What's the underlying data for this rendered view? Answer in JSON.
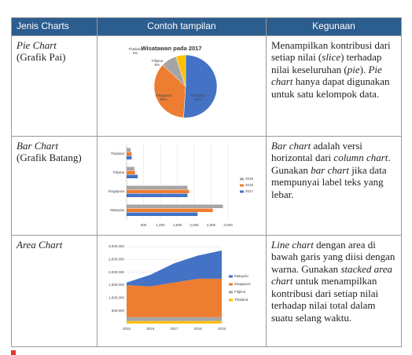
{
  "header": [
    "Jenis Charts",
    "Contoh tampilan",
    "Kegunaan"
  ],
  "rows": [
    {
      "name": "Pie Chart",
      "name_sub": "(Grafik Pai)",
      "chart": {
        "type": "pie",
        "title": "Wisatawan pada 2017",
        "categories": [
          "Malaysia",
          "Singapura",
          "Filipina",
          "Thailand"
        ],
        "values": [
          51,
          36,
          8,
          5
        ],
        "value_labels": [
          "51%",
          "36%",
          "8%",
          "5%"
        ],
        "colors": [
          "#4472c4",
          "#ed7d31",
          "#a5a5a5",
          "#ffc000"
        ]
      },
      "usage": [
        {
          "t": "Menampilkan kontribusi dari setiap nilai (",
          "i": false
        },
        {
          "t": "slice",
          "i": true
        },
        {
          "t": ") terhadap nilai keseluruhan (",
          "i": false
        },
        {
          "t": "pie",
          "i": true
        },
        {
          "t": "). ",
          "i": false
        },
        {
          "t": "Pie chart",
          "i": true
        },
        {
          "t": " hanya dapat digunakan untuk satu kelompok data.",
          "i": false
        }
      ]
    },
    {
      "name": "Bar Chart",
      "name_sub": "(Grafik Batang)",
      "chart": {
        "type": "bar",
        "orientation": "horizontal",
        "categories": [
          "Malaysia",
          "Singapura",
          "Filipina",
          "Thailand"
        ],
        "series": [
          {
            "name": "2017",
            "color": "#4472c4",
            "values": [
              2100,
              1800,
              330,
              150
            ]
          },
          {
            "name": "2018",
            "color": "#ed7d31",
            "values": [
              2550,
              1850,
              250,
              150
            ]
          },
          {
            "name": "2019",
            "color": "#a5a5a5",
            "values": [
              2850,
              1800,
              230,
              120
            ]
          }
        ],
        "xlim": [
          0,
          3000
        ],
        "xticks": [
          500,
          {
            "value": 1000,
            "label": "1,000"
          },
          {
            "value": 1500,
            "label": "1,500"
          },
          {
            "value": 2000,
            "label": "2,000"
          },
          {
            "value": 2500,
            "label": "2,500"
          },
          {
            "value": 3000,
            "label": "3,000"
          }
        ],
        "grid": true
      },
      "usage": [
        {
          "t": "Bar chart",
          "i": true
        },
        {
          "t": " adalah versi horizontal dari ",
          "i": false
        },
        {
          "t": "column chart",
          "i": true
        },
        {
          "t": ". Gunakan ",
          "i": false
        },
        {
          "t": "bar chart",
          "i": true
        },
        {
          "t": " jika data mempunyai label teks yang lebar.",
          "i": false
        }
      ]
    },
    {
      "name": "Area Chart",
      "chart": {
        "type": "area",
        "stacked": true,
        "x": [
          2015,
          2016,
          2017,
          2018,
          2019
        ],
        "series": [
          {
            "name": "Malaysia",
            "color": "#4472c4",
            "values": [
              100000,
              450000,
              750000,
              900000,
              1100000
            ]
          },
          {
            "name": "Singapura",
            "color": "#ed7d31",
            "values": [
              1250000,
              1200000,
              1350000,
              1500000,
              1500000
            ]
          },
          {
            "name": "Filipina",
            "color": "#a5a5a5",
            "values": [
              150000,
              150000,
              150000,
              150000,
              150000
            ]
          },
          {
            "name": "Thailand",
            "color": "#ffc000",
            "values": [
              100000,
              100000,
              100000,
              100000,
              100000
            ]
          }
        ],
        "ylim": [
          0,
          3000000
        ],
        "yticks": [
          {
            "value": 500000,
            "label": "500,000"
          },
          {
            "value": 1000000,
            "label": "1,000,000"
          },
          {
            "value": 1500000,
            "label": "1,500,000"
          },
          {
            "value": 2000000,
            "label": "2,000,000"
          },
          {
            "value": 2500000,
            "label": "2,500,000"
          },
          {
            "value": 3000000,
            "label": "3,000,000"
          }
        ],
        "grid": true
      },
      "usage": [
        {
          "t": "Line chart",
          "i": true
        },
        {
          "t": " dengan area di bawah garis yang diisi dengan warna. Gunakan ",
          "i": false
        },
        {
          "t": "stacked area chart",
          "i": true
        },
        {
          "t": " untuk menampilkan kontribusi dari setiap nilai terhadap nilai total dalam suatu selang waktu.",
          "i": false
        }
      ]
    }
  ]
}
